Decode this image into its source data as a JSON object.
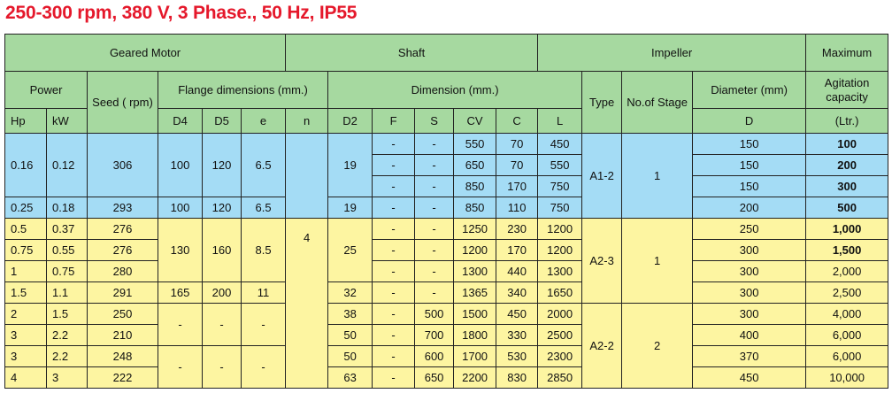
{
  "title": "250-300 rpm, 380 V, 3 Phase., 50 Hz, IP55",
  "header": {
    "group": [
      "Geared  Motor",
      "Shaft",
      "Impeller",
      "Maximum"
    ],
    "sub": [
      "Power",
      "Seed ( rpm)",
      "Flange dimensions (mm.)",
      "Dimension (mm.)",
      "Type",
      "No.of Stage",
      "Diameter (mm)",
      "Agitation capacity"
    ],
    "cols": [
      "Hp",
      "kW",
      "D4",
      "D5",
      "e",
      "n",
      "D2",
      "F",
      "S",
      "CV",
      "C",
      "L",
      "D",
      "(Ltr.)"
    ]
  },
  "rows": [
    [
      "0.16",
      "0.12",
      "306",
      "100",
      "120",
      "6.5",
      "19",
      "-",
      "-",
      "550",
      "70",
      "450",
      "A1-2",
      "1",
      "150",
      "100"
    ],
    [
      "-",
      "-",
      "650",
      "70",
      "550",
      "150",
      "200"
    ],
    [
      "-",
      "-",
      "850",
      "170",
      "750",
      "150",
      "300"
    ],
    [
      "0.25",
      "0.18",
      "293",
      "100",
      "120",
      "6.5",
      "19",
      "-",
      "-",
      "850",
      "110",
      "750",
      "200",
      "500"
    ],
    [
      "0.5",
      "0.37",
      "276",
      "130",
      "160",
      "8.5",
      "4",
      "25",
      "-",
      "-",
      "1250",
      "230",
      "1200",
      "A2-3",
      "1",
      "250",
      "1,000"
    ],
    [
      "0.75",
      "0.55",
      "276",
      "-",
      "-",
      "1200",
      "170",
      "1200",
      "300",
      "1,500"
    ],
    [
      "1",
      "0.75",
      "280",
      "-",
      "-",
      "1300",
      "440",
      "1300",
      "300",
      "2,000"
    ],
    [
      "1.5",
      "1.1",
      "291",
      "165",
      "200",
      "11",
      "32",
      "-",
      "-",
      "1365",
      "340",
      "1650",
      "300",
      "2,500"
    ],
    [
      "2",
      "1.5",
      "250",
      "-",
      "-",
      "-",
      "38",
      "-",
      "500",
      "1500",
      "450",
      "2000",
      "A2-2",
      "2",
      "300",
      "4,000"
    ],
    [
      "3",
      "2.2",
      "210",
      "50",
      "-",
      "700",
      "1800",
      "330",
      "2500",
      "400",
      "6,000"
    ],
    [
      "3",
      "2.2",
      "248",
      "-",
      "-",
      "-",
      "50",
      "-",
      "600",
      "1700",
      "530",
      "2300",
      "370",
      "6,000"
    ],
    [
      "4",
      "3",
      "222",
      "63",
      "-",
      "650",
      "2200",
      "830",
      "2850",
      "450",
      "10,000"
    ]
  ]
}
